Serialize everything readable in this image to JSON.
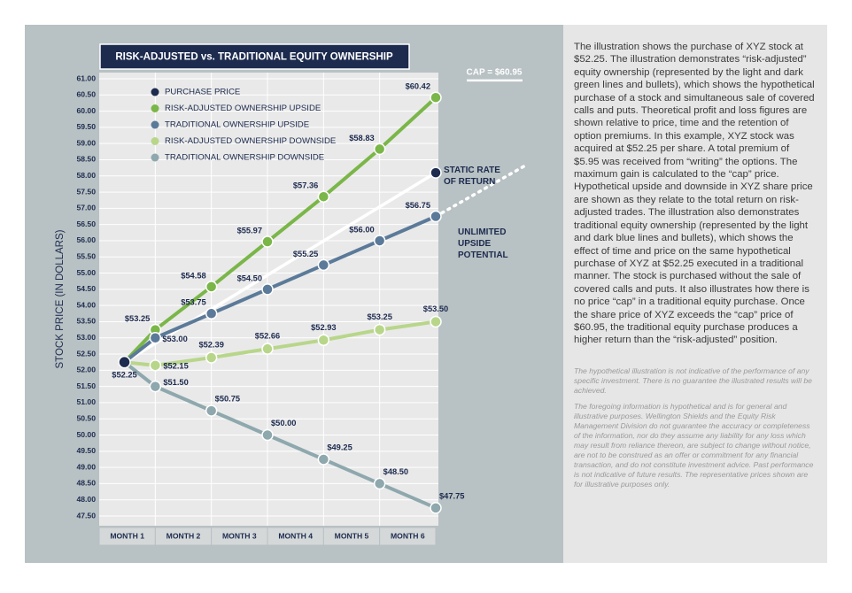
{
  "chart_data": {
    "type": "line",
    "title": "RISK-ADJUSTED vs. TRADITIONAL EQUITY OWNERSHIP",
    "y_label": "STOCK PRICE  (IN DOLLARS)",
    "categories": [
      "MONTH 1",
      "MONTH 2",
      "MONTH 3",
      "MONTH 4",
      "MONTH 5",
      "MONTH 6"
    ],
    "xlim": [
      0,
      6
    ],
    "ylim": [
      47.5,
      61
    ],
    "yticks": [
      {
        "value": 47.5,
        "label": "47.50"
      },
      {
        "value": 48,
        "label": "48.00"
      },
      {
        "value": 48.5,
        "label": "48.50"
      },
      {
        "value": 49,
        "label": "49.00"
      },
      {
        "value": 49.5,
        "label": "49.50"
      },
      {
        "value": 50,
        "label": "50.00"
      },
      {
        "value": 50.5,
        "label": "50.50"
      },
      {
        "value": 51,
        "label": "51.00"
      },
      {
        "value": 51.5,
        "label": "51.50"
      },
      {
        "value": 52,
        "label": "52.00"
      },
      {
        "value": 52.5,
        "label": "52.50"
      },
      {
        "value": 53,
        "label": "53.00"
      },
      {
        "value": 53.5,
        "label": "53.50"
      },
      {
        "value": 54,
        "label": "54.00"
      },
      {
        "value": 54.5,
        "label": "54.50"
      },
      {
        "value": 55,
        "label": "55.00"
      },
      {
        "value": 55.5,
        "label": "55.50"
      },
      {
        "value": 56,
        "label": "56.00"
      },
      {
        "value": 56.5,
        "label": "56.50"
      },
      {
        "value": 57,
        "label": "57.00"
      },
      {
        "value": 57.5,
        "label": "57.50"
      },
      {
        "value": 58,
        "label": "58.00"
      },
      {
        "value": 58.5,
        "label": "58.50"
      },
      {
        "value": 59,
        "label": "59.00"
      },
      {
        "value": 59.5,
        "label": "59.50"
      },
      {
        "value": 60,
        "label": "60.00"
      },
      {
        "value": 60.5,
        "label": "60.50"
      },
      {
        "value": 61,
        "label": "61.00"
      }
    ],
    "grid": true,
    "series": [
      {
        "name": "PURCHASE PRICE",
        "color": "#1d2b4f",
        "x": [
          0.45
        ],
        "values": [
          52.25
        ],
        "value_labels": [
          "$52.25"
        ]
      },
      {
        "name": "RISK-ADJUSTED OWNERSHIP UPSIDE",
        "color": "#7ab648",
        "x": [
          1,
          2,
          3,
          4,
          5,
          6
        ],
        "values": [
          53.25,
          54.58,
          55.97,
          57.36,
          58.83,
          60.42
        ],
        "value_labels": [
          "$53.25",
          "$54.58",
          "$55.97",
          "$57.36",
          "$58.83",
          "$60.42"
        ]
      },
      {
        "name": "TRADITIONAL OWNERSHIP UPSIDE",
        "color": "#5b7a99",
        "x": [
          1,
          2,
          3,
          4,
          5,
          6
        ],
        "values": [
          53.0,
          53.75,
          54.5,
          55.25,
          56.0,
          56.75
        ],
        "value_labels": [
          "$53.00",
          "$53.75",
          "$54.50",
          "$55.25",
          "$56.00",
          "$56.75"
        ]
      },
      {
        "name": "RISK-ADJUSTED OWNERSHIP DOWNSIDE",
        "color": "#b8d68a",
        "x": [
          1,
          2,
          3,
          4,
          5,
          6
        ],
        "values": [
          52.15,
          52.39,
          52.66,
          52.93,
          53.25,
          53.5
        ],
        "value_labels": [
          "$52.15",
          "$52.39",
          "$52.66",
          "$52.93",
          "$53.25",
          "$53.50"
        ]
      },
      {
        "name": "TRADITIONAL OWNERSHIP DOWNSIDE",
        "color": "#8ea8ad",
        "x": [
          1,
          2,
          3,
          4,
          5,
          6
        ],
        "values": [
          51.5,
          50.75,
          50.0,
          49.25,
          48.5,
          47.75
        ],
        "value_labels": [
          "$51.50",
          "$50.75",
          "$50.00",
          "$49.25",
          "$48.50",
          "$47.75"
        ]
      }
    ],
    "static_rate": {
      "label": "STATIC RATE OF RETURN",
      "x": 6,
      "value": 58.1,
      "color": "#1d2b4f"
    },
    "cap": {
      "label": "CAP = $60.95",
      "value": 60.95
    },
    "unlimited": {
      "label": "UNLIMITED UPSIDE POTENTIAL"
    }
  },
  "side_text": {
    "body": "The illustration shows the purchase of XYZ stock at $52.25. The illustration demonstrates “risk-adjusted” equity ownership (represented by the light and dark green lines and bullets), which shows the hypothetical purchase of a stock and simultaneous sale of covered calls and puts. Theoretical profit and loss figures are shown relative to price, time and the retention of option premiums. In this example, XYZ stock was acquired at $52.25 per share. A total premium of $5.95 was received from “writing” the options. The maximum gain is calculated to the “cap” price. Hypothetical upside and downside in XYZ share price are shown as they relate to the total return on risk-adjusted trades. The illustration also demonstrates traditional equity ownership (represented by the light and dark blue lines and bullets), which shows the effect of time and price on the same hypothetical purchase of XYZ at $52.25 executed in a traditional manner. The stock is purchased without the sale of covered calls and puts. It also illustrates how there is no price “cap” in a traditional equity purchase. Once the share price of XYZ exceeds the “cap” price of $60.95, the traditional equity purchase produces a higher return than the “risk-adjusted” position.",
    "notes": [
      "The hypothetical illustration is not indicative of the performance of any specific investment. There is no guarantee the illustrated results will be achieved.",
      "The foregoing information is hypothetical and is for general and illustrative purposes. Wellington Shields and the Equity Risk Management Division do not guarantee the accuracy or completeness of the information, nor do they assume any liability for any loss which may result from reliance thereon, are subject to change without notice, are not to be construed as an offer or commitment for any financial transaction, and do not constitute investment advice. Past performance is not indicative of future results. The representative prices shown are for illustrative purposes only."
    ]
  }
}
